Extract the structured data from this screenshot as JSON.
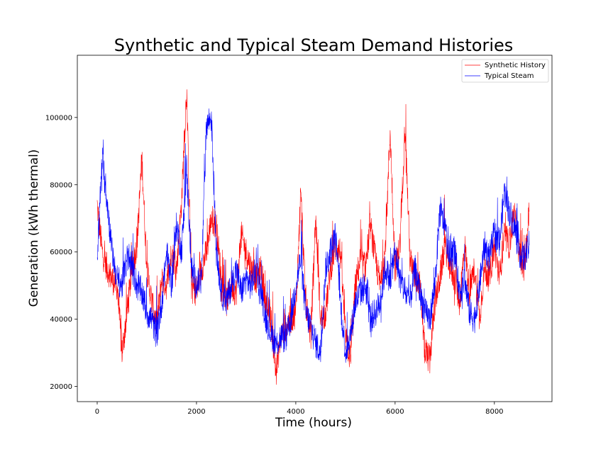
{
  "chart_data": {
    "type": "line",
    "title": "Synthetic and Typical Steam Demand Histories",
    "xlabel": "Time (hours)",
    "ylabel": "Generation (kWh thermal)",
    "xlim": [
      -400,
      9160
    ],
    "ylim": [
      15500,
      118500
    ],
    "xticks": [
      0,
      2000,
      4000,
      6000,
      8000
    ],
    "yticks": [
      20000,
      40000,
      60000,
      80000,
      100000
    ],
    "grid": false,
    "legend_position": "top-right",
    "series": [
      {
        "name": "Synthetic History",
        "color": "#ff0000",
        "x": [
          0,
          100,
          200,
          300,
          400,
          500,
          600,
          700,
          800,
          900,
          1000,
          1100,
          1200,
          1300,
          1400,
          1500,
          1600,
          1700,
          1800,
          1900,
          2000,
          2100,
          2200,
          2300,
          2400,
          2500,
          2600,
          2700,
          2800,
          2900,
          3000,
          3100,
          3200,
          3300,
          3400,
          3500,
          3600,
          3700,
          3800,
          3900,
          4000,
          4100,
          4200,
          4300,
          4400,
          4500,
          4600,
          4700,
          4800,
          4900,
          5000,
          5100,
          5200,
          5300,
          5400,
          5500,
          5600,
          5700,
          5800,
          5900,
          6000,
          6100,
          6200,
          6300,
          6400,
          6500,
          6600,
          6700,
          6800,
          6900,
          7000,
          7100,
          7200,
          7300,
          7400,
          7500,
          7600,
          7700,
          7800,
          7900,
          8000,
          8100,
          8200,
          8300,
          8400,
          8500,
          8600,
          8700
        ],
        "values": [
          74000,
          60000,
          55000,
          52000,
          50000,
          30000,
          42000,
          55000,
          62000,
          88000,
          55000,
          45000,
          38000,
          52000,
          50000,
          60000,
          55000,
          75000,
          108000,
          50000,
          48000,
          55000,
          60000,
          70000,
          68000,
          52000,
          45000,
          50000,
          48000,
          65000,
          60000,
          55000,
          52000,
          55000,
          45000,
          40000,
          24000,
          35000,
          38000,
          40000,
          42000,
          78000,
          45000,
          35000,
          70000,
          40000,
          42000,
          55000,
          62000,
          60000,
          35000,
          28000,
          50000,
          58000,
          55000,
          68000,
          58000,
          50000,
          60000,
          96000,
          55000,
          62000,
          98000,
          58000,
          52000,
          50000,
          30000,
          28000,
          45000,
          52000,
          62000,
          56000,
          52000,
          45000,
          62000,
          48000,
          55000,
          40000,
          55000,
          52000,
          62000,
          52000,
          65000,
          62000,
          72000,
          60000,
          55000,
          72000
        ]
      },
      {
        "name": "Typical Steam",
        "color": "#0000ff",
        "x": [
          0,
          100,
          200,
          300,
          400,
          500,
          600,
          700,
          800,
          900,
          1000,
          1100,
          1200,
          1300,
          1400,
          1500,
          1600,
          1700,
          1800,
          1900,
          2000,
          2100,
          2200,
          2300,
          2400,
          2500,
          2600,
          2700,
          2800,
          2900,
          3000,
          3100,
          3200,
          3300,
          3400,
          3500,
          3600,
          3700,
          3800,
          3900,
          4000,
          4100,
          4200,
          4300,
          4400,
          4500,
          4600,
          4700,
          4800,
          4900,
          5000,
          5100,
          5200,
          5300,
          5400,
          5500,
          5600,
          5700,
          5800,
          5900,
          6000,
          6100,
          6200,
          6300,
          6400,
          6500,
          6600,
          6700,
          6800,
          6900,
          7000,
          7100,
          7200,
          7300,
          7400,
          7500,
          7600,
          7700,
          7800,
          7900,
          8000,
          8100,
          8200,
          8300,
          8400,
          8500,
          8600,
          8700
        ],
        "values": [
          58000,
          88000,
          75000,
          60000,
          52000,
          50000,
          58000,
          56000,
          50000,
          48000,
          42000,
          40000,
          35000,
          45000,
          60000,
          50000,
          68000,
          60000,
          85000,
          55000,
          50000,
          52000,
          98000,
          100000,
          60000,
          48000,
          45000,
          50000,
          55000,
          48000,
          52000,
          50000,
          55000,
          48000,
          40000,
          36000,
          32000,
          35000,
          34000,
          40000,
          50000,
          58000,
          42000,
          38000,
          33000,
          30000,
          55000,
          60000,
          65000,
          45000,
          30000,
          35000,
          45000,
          48000,
          50000,
          40000,
          42000,
          45000,
          55000,
          52000,
          60000,
          52000,
          48000,
          45000,
          55000,
          48000,
          42000,
          40000,
          50000,
          72000,
          68000,
          58000,
          60000,
          48000,
          52000,
          42000,
          40000,
          50000,
          62000,
          58000,
          66000,
          62000,
          78000,
          72000,
          68000,
          60000,
          58000,
          62000
        ]
      }
    ]
  }
}
